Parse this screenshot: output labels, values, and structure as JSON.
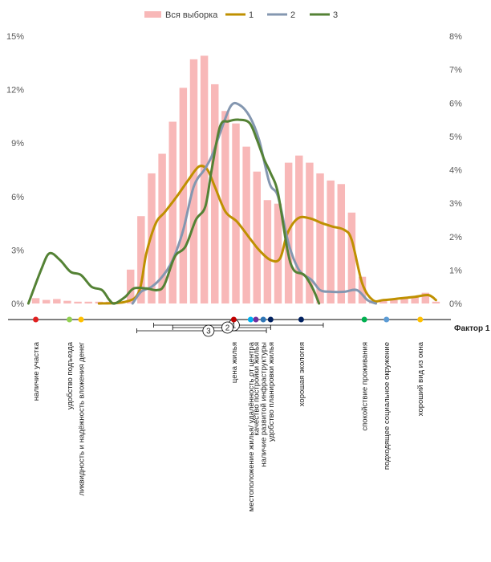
{
  "chart_data": {
    "type": "bar",
    "x_axis_title": "Фактор 1",
    "y_left": {
      "ticks": [
        "0%",
        "3%",
        "6%",
        "9%",
        "12%",
        "15%"
      ],
      "range": [
        0,
        15
      ]
    },
    "y_right": {
      "ticks": [
        "0%",
        "1%",
        "2%",
        "3%",
        "4%",
        "5%",
        "6%",
        "7%",
        "8%"
      ],
      "range": [
        0,
        8
      ]
    },
    "grid": false,
    "legend_position": "top",
    "bar_series": {
      "name": "Вся выборка",
      "color": "#f8b8b8",
      "values": [
        0.3,
        0.2,
        0.25,
        0.15,
        0.1,
        0.1,
        0.1,
        0.1,
        0.0,
        1.9,
        4.9,
        7.3,
        8.4,
        10.2,
        12.1,
        13.7,
        13.9,
        12.3,
        10.8,
        10.1,
        8.8,
        7.4,
        5.8,
        5.6,
        7.9,
        8.3,
        7.9,
        7.3,
        6.9,
        6.7,
        5.1,
        1.5,
        0.1,
        0.15,
        0.2,
        0.3,
        0.4,
        0.6,
        0.1
      ]
    },
    "line_series": [
      {
        "name": "1",
        "color": "#bf9000",
        "axis": "right",
        "points": [
          [
            6,
            0.0
          ],
          [
            8.5,
            0.05
          ],
          [
            9.8,
            0.35
          ],
          [
            10.5,
            1.5
          ],
          [
            11.4,
            2.4
          ],
          [
            12.3,
            2.75
          ],
          [
            13.5,
            3.25
          ],
          [
            14.5,
            3.7
          ],
          [
            15.5,
            4.1
          ],
          [
            16.3,
            4.0
          ],
          [
            17.0,
            3.5
          ],
          [
            18.0,
            2.75
          ],
          [
            19.1,
            2.45
          ],
          [
            20.2,
            2.0
          ],
          [
            21.2,
            1.6
          ],
          [
            22.3,
            1.3
          ],
          [
            23.2,
            1.35
          ],
          [
            23.9,
            2.1
          ],
          [
            24.9,
            2.55
          ],
          [
            26.0,
            2.55
          ],
          [
            27.2,
            2.4
          ],
          [
            28.2,
            2.3
          ],
          [
            29.3,
            2.2
          ],
          [
            30.0,
            1.9
          ],
          [
            31.0,
            0.6
          ],
          [
            32.0,
            0.1
          ],
          [
            33.0,
            0.1
          ],
          [
            34.5,
            0.15
          ],
          [
            36.0,
            0.2
          ],
          [
            37.3,
            0.25
          ],
          [
            38.0,
            0.1
          ]
        ]
      },
      {
        "name": "2",
        "color": "#8497b0",
        "axis": "right",
        "points": [
          [
            9.2,
            0.0
          ],
          [
            10.0,
            0.35
          ],
          [
            11.0,
            0.5
          ],
          [
            12.0,
            0.8
          ],
          [
            13.0,
            1.3
          ],
          [
            14.0,
            2.2
          ],
          [
            15.0,
            3.5
          ],
          [
            16.0,
            4.0
          ],
          [
            16.7,
            4.4
          ],
          [
            17.5,
            5.1
          ],
          [
            18.5,
            5.9
          ],
          [
            19.3,
            5.95
          ],
          [
            20.3,
            5.6
          ],
          [
            21.2,
            4.9
          ],
          [
            22.2,
            3.6
          ],
          [
            23.0,
            3.2
          ],
          [
            24.0,
            1.8
          ],
          [
            25.0,
            1.0
          ],
          [
            26.2,
            0.7
          ],
          [
            27.0,
            0.4
          ],
          [
            28.0,
            0.35
          ],
          [
            29.3,
            0.35
          ],
          [
            30.5,
            0.4
          ],
          [
            31.5,
            0.1
          ],
          [
            32.3,
            0.0
          ]
        ]
      },
      {
        "name": "3",
        "color": "#548235",
        "axis": "right",
        "points": [
          [
            -0.7,
            0.0
          ],
          [
            0.5,
            1.0
          ],
          [
            1.3,
            1.5
          ],
          [
            2.3,
            1.3
          ],
          [
            3.3,
            0.95
          ],
          [
            4.3,
            0.85
          ],
          [
            5.3,
            0.5
          ],
          [
            6.3,
            0.4
          ],
          [
            7.0,
            0.1
          ],
          [
            7.5,
            0.0
          ],
          [
            8.5,
            0.2
          ],
          [
            9.3,
            0.45
          ],
          [
            10.5,
            0.45
          ],
          [
            11.5,
            0.4
          ],
          [
            12.2,
            0.55
          ],
          [
            13.2,
            1.4
          ],
          [
            14.2,
            1.7
          ],
          [
            15.2,
            2.5
          ],
          [
            16.1,
            2.9
          ],
          [
            16.7,
            4.0
          ],
          [
            17.5,
            5.3
          ],
          [
            18.3,
            5.45
          ],
          [
            19.3,
            5.5
          ],
          [
            20.3,
            5.4
          ],
          [
            21.0,
            4.9
          ],
          [
            21.7,
            4.3
          ],
          [
            22.3,
            3.9
          ],
          [
            23.0,
            3.3
          ],
          [
            23.9,
            1.6
          ],
          [
            24.5,
            1.0
          ],
          [
            25.5,
            0.85
          ],
          [
            26.3,
            0.45
          ],
          [
            26.9,
            0.0
          ]
        ]
      }
    ],
    "factor_labels": [
      {
        "text": "наличие участка",
        "x": 0.0,
        "dot_color": "#e02020"
      },
      {
        "text": "удобство подъезда",
        "x": 3.2,
        "dot_color": "#92d050"
      },
      {
        "text": "ликвидность и надёжность вложения денег",
        "x": 4.3,
        "dot_color": "#ffc000"
      },
      {
        "text": "цена жилья",
        "x": 18.8,
        "dot_color": "#c00000"
      },
      {
        "text": "местоположение жилья/ удалённость от центра",
        "x": 20.4,
        "dot_color": "#00b0f0"
      },
      {
        "text": "качество постройки жилья",
        "x": 20.9,
        "dot_color": "#7030a0"
      },
      {
        "text": "наличие развитой инфраструктуры",
        "x": 21.6,
        "dot_color": "#2e75b6"
      },
      {
        "text": "удобство планировки жилья",
        "x": 22.3,
        "dot_color": "#002060"
      },
      {
        "text": "хорошая экология",
        "x": 25.2,
        "dot_color": "#002060"
      },
      {
        "text": "спокойствие проживания",
        "x": 31.2,
        "dot_color": "#00b050"
      },
      {
        "text": "подходящее социальное окружение",
        "x": 33.3,
        "dot_color": "#5b9bd5"
      },
      {
        "text": "хороший вид из окна",
        "x": 36.5,
        "dot_color": "#ffc000"
      }
    ],
    "cluster_markers": [
      {
        "label": "1",
        "x": 18.8,
        "range": [
          11.2,
          27.3
        ]
      },
      {
        "label": "2",
        "x": 18.2,
        "range": [
          13.0,
          22.3
        ]
      },
      {
        "label": "3",
        "x": 16.4,
        "range": [
          9.6,
          21.9
        ]
      }
    ]
  }
}
